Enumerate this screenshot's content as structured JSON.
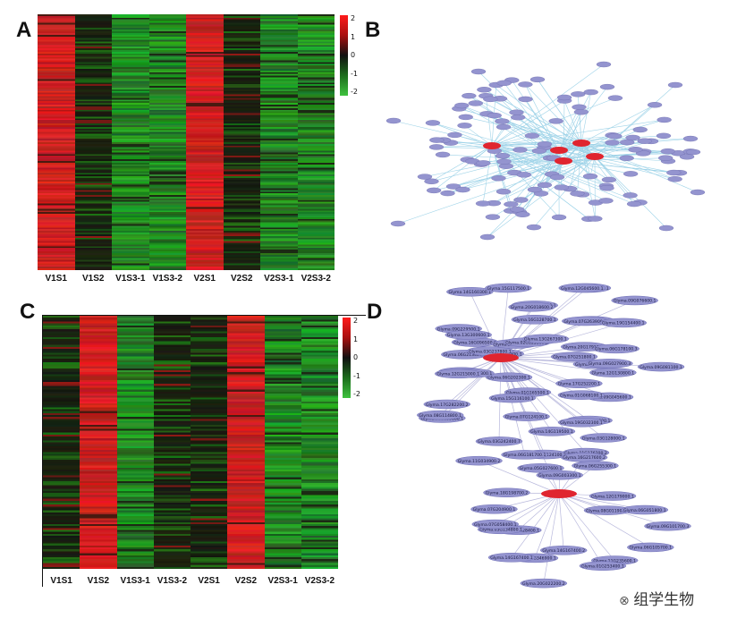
{
  "panels": {
    "A": {
      "letter": "A",
      "columns": [
        "V1S1",
        "V1S2",
        "V1S3-1",
        "V1S3-2",
        "V2S1",
        "V2S2",
        "V2S3-1",
        "V2S3-2"
      ],
      "column_tone": [
        "red",
        "dark",
        "green",
        "green",
        "red",
        "dark",
        "green",
        "green"
      ],
      "colorbar_ticks": [
        "2",
        "1",
        "0",
        "-1",
        "-2"
      ]
    },
    "B": {
      "letter": "B"
    },
    "C": {
      "letter": "C",
      "columns": [
        "V1S1",
        "V1S2",
        "V1S3-1",
        "V1S3-2",
        "V2S1",
        "V2S2",
        "V2S3-1",
        "V2S3-2"
      ],
      "column_tone": [
        "dark",
        "red",
        "green",
        "dark",
        "dark",
        "red",
        "green",
        "green"
      ],
      "colorbar_ticks": [
        "2",
        "1",
        "0",
        "-1",
        "-2"
      ]
    },
    "D": {
      "letter": "D",
      "node_labels": [
        "Glyma.01G170200.1",
        "Glyma.12G130800.1",
        "Glyma.17G252200.1",
        "Glyma.09G045600.1",
        "Glyma.01G068100.1",
        "Glyma.19G224800.1",
        "Glyma.03G128000.1",
        "Glyma.19G032300.1",
        "Glyma.11G176200.2",
        "Glyma.07G124100.2",
        "Glyma.14G119500.1",
        "Glyma.06G181700.1",
        "Glyma.07G124100.1",
        "Glyma.01G165500.1",
        "Glyma.03G242400.7",
        "Glyma.15G116100.1",
        "Glyma.01G099000.1",
        "Glyma.06G202300.1",
        "Glyma.17G282200.2",
        "Glyma.08G114800.1",
        "Glyma.06G220300.1",
        "Glyma.20G050300.1",
        "Glyma.12G215000.1",
        "Glyma.06G213400.1",
        "Glyma.11G217400.1",
        "Glyma.03G237800.1",
        "Glyma.09G229500.1",
        "Glyma.16G096500.1",
        "Glyma.13G300600.1",
        "Glyma.20G119800.1",
        "Glyma.02G125300.2",
        "Glyma.14G160300.1",
        "Glyma.15G117500.1",
        "Glyma.02G083700.1",
        "Glyma.16G128700.1",
        "Glyma.20G018600.2",
        "Glyma.13G267300.1",
        "Glyma.18G096300.1",
        "Glyma.12G045600.1",
        "Glyma.19G159700.1",
        "Glyma.07G263900.1",
        "Glyma.09G076600.1",
        "Glyma.20G179100.1",
        "Glyma.19G154400.1",
        "Glyma.06G178100.3",
        "Glyma.07G251800.1",
        "Glyma.09G081100.1",
        "Glyma.09G027900.3",
        "Glyma.09G101700.3",
        "Glyma.06G105700.1",
        "Glyma.11G235600.1",
        "Glyma.01G253400.1",
        "Glyma.14G167400.2",
        "Glyma.20G022200.2",
        "Glyma.13G346900.1",
        "Glyma.14G167400.1",
        "Glyma.18G128400.1",
        "Glyma.03G134800.1",
        "Glyma.07G058400.1",
        "Glyma.07G204900.1",
        "Glyma.18G198700.2",
        "Glyma.11G034900.2",
        "Glyma.05G027600.1",
        "Glyma.09G003300.1",
        "Glyma.16G217600.2",
        "Glyma.06G255300.1",
        "Glyma.12G179000.1",
        "Glyma.08G011900.1",
        "Glyma.06G051800.1"
      ]
    }
  },
  "watermark": {
    "text": "组学生物"
  },
  "colors": {
    "red": "#e02828",
    "green": "#3aa83a",
    "dark": "#1a1a12",
    "node": "#9494cf",
    "hub": "#e0252f",
    "edge": "#9ed3e8"
  }
}
